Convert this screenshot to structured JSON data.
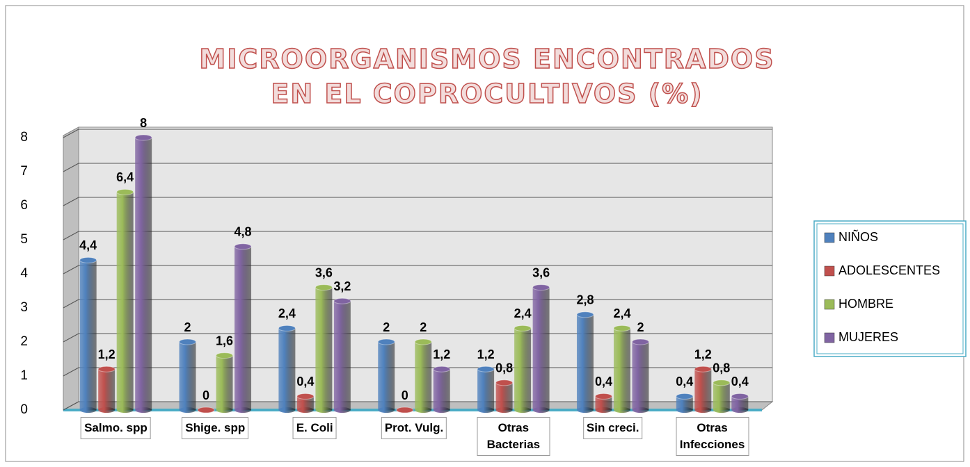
{
  "chart_data": {
    "type": "bar",
    "title": "MICROORGANISMOS ENCONTRADOS EN EL COPROCULTIVOS (%)",
    "categories": [
      "Salmo. spp",
      "Shige. spp",
      "E. Coli",
      "Prot. Vulg.",
      "Otras Bacterias",
      "Sin creci.",
      "Otras Infecciones"
    ],
    "series": [
      {
        "name": "NIÑOS",
        "color": "#4f81bd",
        "values": [
          4.4,
          2,
          2.4,
          2,
          1.2,
          2.8,
          0.4
        ],
        "value_labels": [
          "4,4",
          "2",
          "2,4",
          "2",
          "1,2",
          "2,8",
          "0,4"
        ]
      },
      {
        "name": "ADOLESCENTES",
        "color": "#c0504d",
        "values": [
          1.2,
          0,
          0.4,
          0,
          0.8,
          0.4,
          1.2
        ],
        "value_labels": [
          "1,2",
          "0",
          "0,4",
          "0",
          "0,8",
          "0,4",
          "1,2"
        ]
      },
      {
        "name": "HOMBRE",
        "color": "#9bbb59",
        "values": [
          6.4,
          1.6,
          3.6,
          2,
          2.4,
          2.4,
          0.8
        ],
        "value_labels": [
          "6,4",
          "1,6",
          "3,6",
          "2",
          "2,4",
          "2,4",
          "0,8"
        ]
      },
      {
        "name": "MUJERES",
        "color": "#8064a2",
        "values": [
          8,
          4.8,
          3.2,
          1.2,
          3.6,
          2,
          0.4
        ],
        "value_labels": [
          "8",
          "4,8",
          "3,2",
          "1,2",
          "3,6",
          "2",
          "0,4"
        ]
      }
    ],
    "ylim": [
      0,
      8
    ],
    "yticks": [
      0,
      1,
      2,
      3,
      4,
      5,
      6,
      7,
      8
    ],
    "grid": true,
    "legend": "right"
  }
}
